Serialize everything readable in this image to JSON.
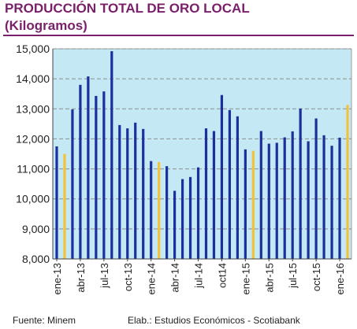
{
  "header": {
    "title": "PRODUCCIÓN TOTAL DE ORO LOCAL",
    "subtitle": "(Kilogramos)"
  },
  "footer": {
    "source": "Fuente: Minem",
    "credit": "Elab.: Estudios Económicos - Scotiabank"
  },
  "colors": {
    "plot_background": "#c5e9f4",
    "bar_monthly": "#1c2f9c",
    "bar_annual_average": "#f2c23a",
    "gridline": "#8c8c8c",
    "title": "#7a1f6a"
  },
  "chart_data": {
    "type": "bar",
    "title": "PRODUCCIÓN TOTAL DE ORO LOCAL",
    "subtitle": "(Kilogramos)",
    "ylim": [
      8000,
      15000
    ],
    "yticks": [
      8000,
      9000,
      10000,
      11000,
      12000,
      13000,
      14000,
      15000
    ],
    "ytick_labels": [
      "8,000",
      "9,000",
      "10,000",
      "11,000",
      "12,000",
      "13,000",
      "14,000",
      "15,000"
    ],
    "grid": "horizontal dashed",
    "x_tick_labels": [
      "ene-13",
      "abr-13",
      "jul-13",
      "oct-13",
      "ene-14",
      "abr-14",
      "jul-14",
      "oct14",
      "ene-15",
      "abr-15",
      "jul-15",
      "oct-15",
      "ene-16"
    ],
    "series": [
      {
        "values": [
          11750,
          11500,
          12980,
          13800,
          14080,
          13430,
          13580,
          14920,
          12460,
          12350,
          12540,
          12330,
          11260,
          11230,
          11090,
          10270,
          10660,
          10730,
          11050,
          12350,
          12260,
          13460,
          12960,
          12750,
          11650,
          11600,
          12260,
          11840,
          11870,
          12050,
          12250,
          13010,
          11920,
          12680,
          12120,
          11770,
          12040,
          13130
        ],
        "highlight": [
          false,
          true,
          false,
          false,
          false,
          false,
          false,
          false,
          false,
          false,
          false,
          false,
          false,
          true,
          false,
          false,
          false,
          false,
          false,
          false,
          false,
          false,
          false,
          false,
          false,
          true,
          false,
          false,
          false,
          false,
          false,
          false,
          false,
          false,
          false,
          false,
          false,
          true
        ]
      }
    ]
  }
}
